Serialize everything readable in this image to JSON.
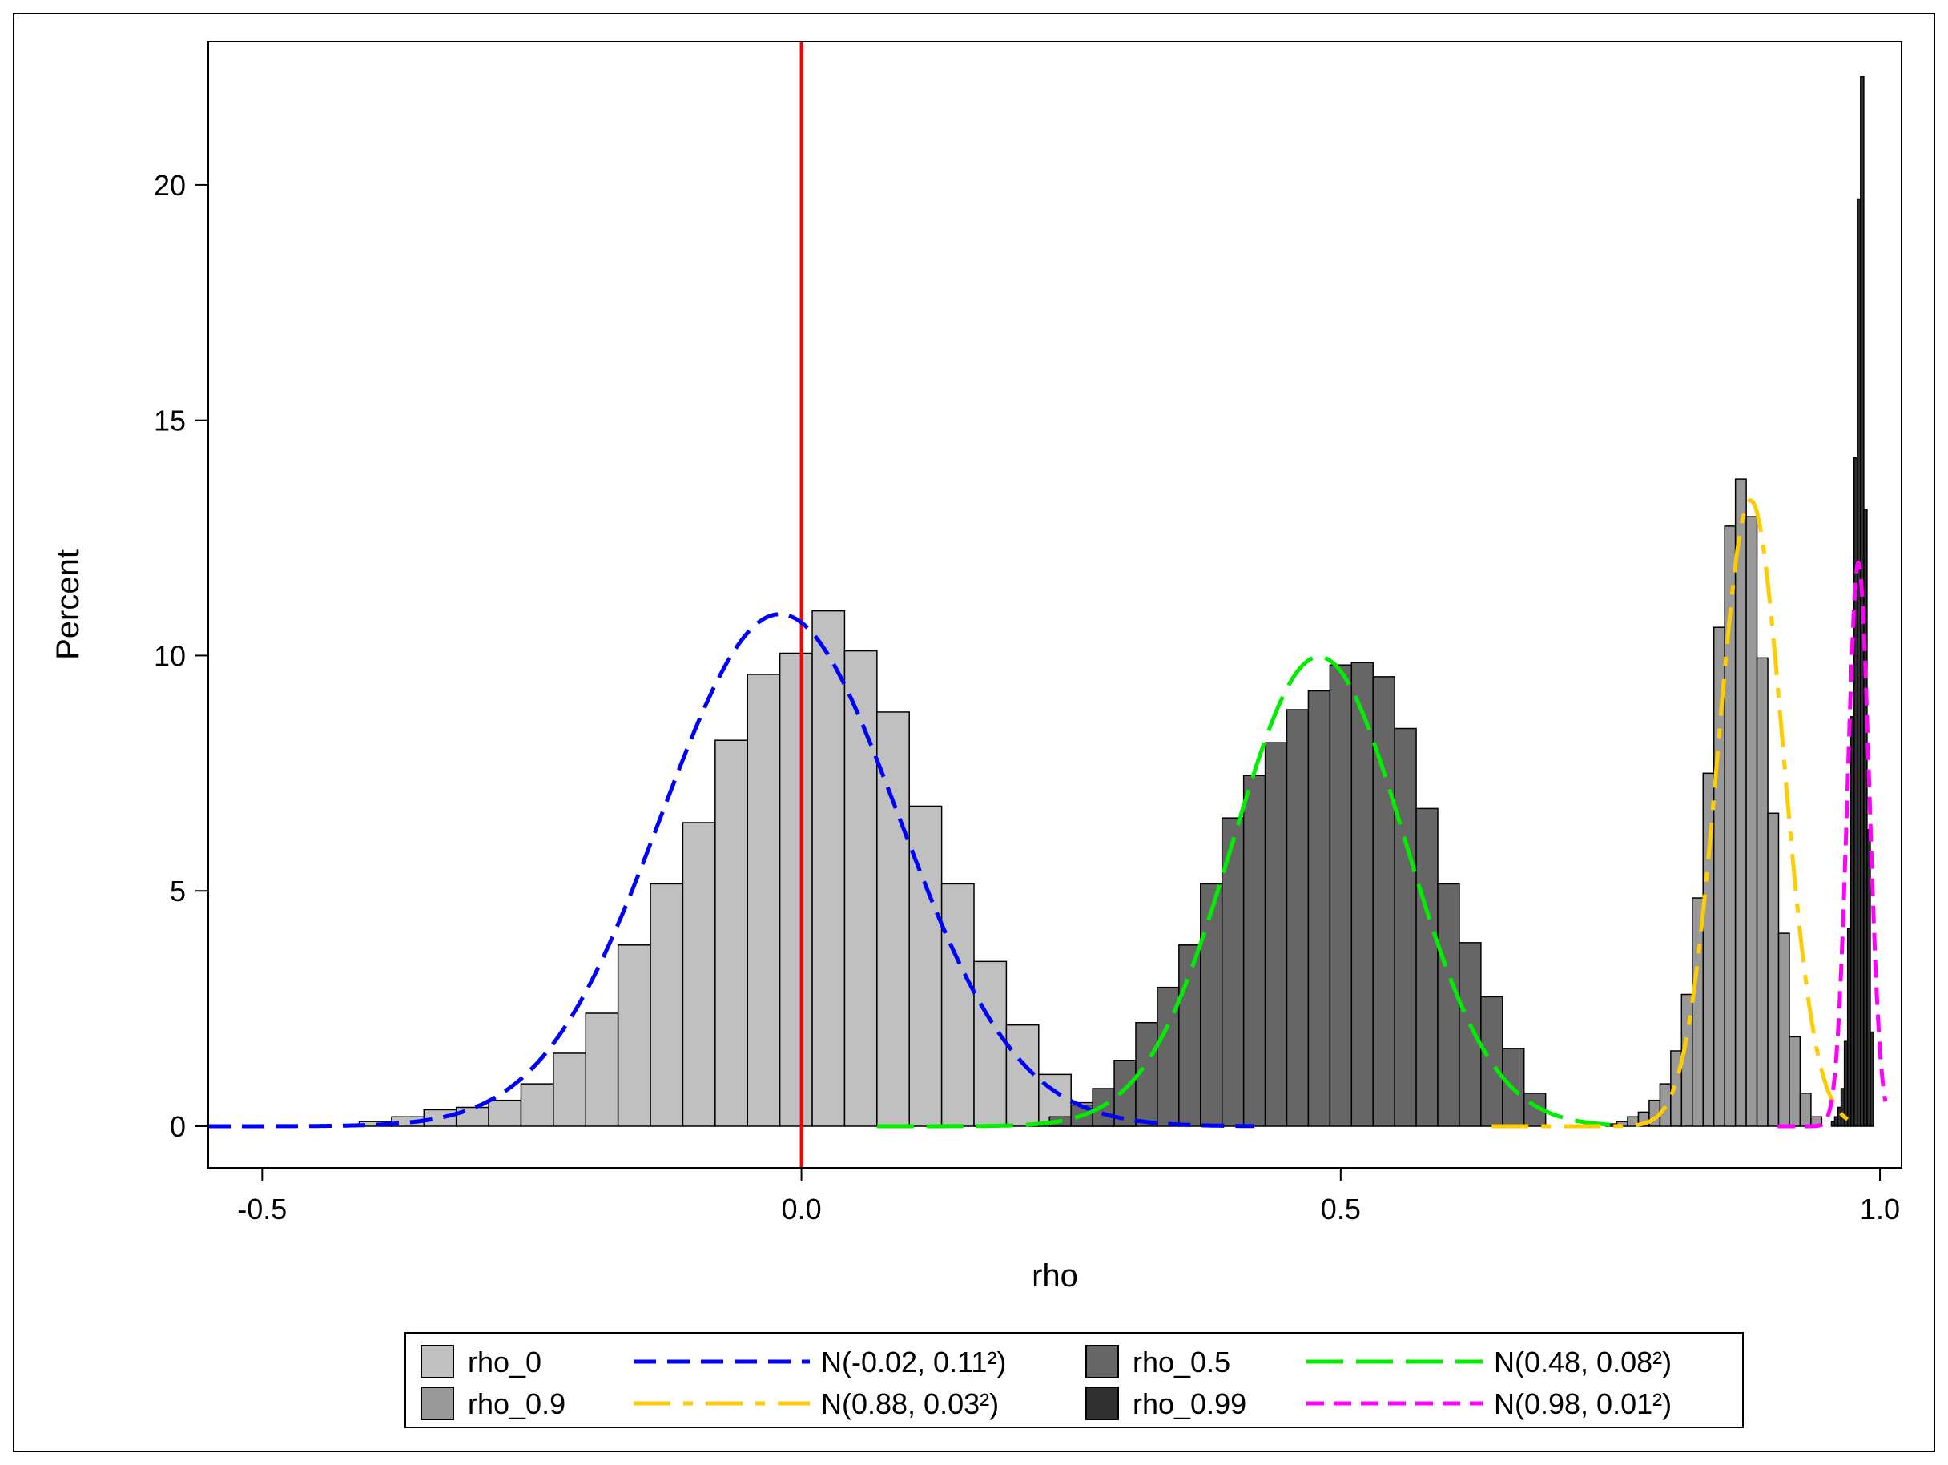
{
  "chart_data": {
    "type": "bar",
    "xlabel": "rho",
    "ylabel": "Percent",
    "xlim": [
      -0.55,
      1.02
    ],
    "ylim": [
      0,
      22.5
    ],
    "x_ticks": [
      -0.5,
      0.0,
      0.5,
      1.0
    ],
    "x_tick_labels": [
      "-0.5",
      "0.0",
      "0.5",
      "1.0"
    ],
    "y_ticks": [
      0,
      5,
      10,
      15,
      20
    ],
    "y_tick_labels": [
      "0",
      "5",
      "10",
      "15",
      "20"
    ],
    "grid": false,
    "reference_line": {
      "x": 0.0,
      "color": "#ff0000"
    },
    "legend_position": "bottom",
    "series": [
      {
        "name": "rho_0",
        "kind": "histogram",
        "color": "#c0c0c0",
        "bin_start": -0.41,
        "bin_width": 0.03,
        "values": [
          0.1,
          0.2,
          0.35,
          0.4,
          0.55,
          0.9,
          1.55,
          2.4,
          3.85,
          5.15,
          6.45,
          8.2,
          9.6,
          10.05,
          10.95,
          10.1,
          8.8,
          6.8,
          5.15,
          3.5,
          2.15,
          1.1,
          0.5,
          0.15
        ]
      },
      {
        "name": "rho_0.5",
        "kind": "histogram",
        "color": "#666666",
        "bin_start": 0.23,
        "bin_width": 0.02,
        "values": [
          0.2,
          0.45,
          0.8,
          1.4,
          2.2,
          2.95,
          3.85,
          5.15,
          6.55,
          7.45,
          8.15,
          8.85,
          9.25,
          9.8,
          9.85,
          9.55,
          8.45,
          6.75,
          5.15,
          3.9,
          2.75,
          1.65,
          0.7
        ]
      },
      {
        "name": "rho_0.9",
        "kind": "histogram",
        "color": "#999999",
        "bin_start": 0.746,
        "bin_width": 0.01,
        "values": [
          0.05,
          0.1,
          0.2,
          0.3,
          0.55,
          0.9,
          1.6,
          2.8,
          4.85,
          7.5,
          10.6,
          12.75,
          13.75,
          12.95,
          9.95,
          6.65,
          4.1,
          1.9,
          0.7,
          0.2
        ]
      },
      {
        "name": "rho_0.99",
        "kind": "histogram",
        "color": "#303030",
        "bin_start": 0.955,
        "bin_width": 0.003,
        "values": [
          0.1,
          0.2,
          0.4,
          0.8,
          1.8,
          4.2,
          8.7,
          14.2,
          19.7,
          22.3,
          13.1,
          6.3,
          2.0
        ]
      },
      {
        "name": "N(-0.02, 0.11²)",
        "kind": "normal",
        "mean": -0.02,
        "sd": 0.11,
        "color": "#0000ff",
        "x_range": [
          -0.55,
          0.42
        ]
      },
      {
        "name": "N(0.48, 0.08²)",
        "kind": "normal",
        "mean": 0.48,
        "sd": 0.08,
        "color": "#00ee00",
        "x_range": [
          0.07,
          0.75
        ]
      },
      {
        "name": "N(0.88, 0.03²)",
        "kind": "normal",
        "mean": 0.88,
        "sd": 0.03,
        "color": "#ffcc00",
        "x_range": [
          0.64,
          0.97
        ]
      },
      {
        "name": "N(0.98, 0.01²)",
        "kind": "normal",
        "mean": 0.98,
        "sd": 0.01,
        "color": "#ff00ff",
        "x_range": [
          0.905,
          1.005
        ]
      }
    ],
    "legend": [
      {
        "label": "rho_0",
        "kind": "box",
        "color": "#c0c0c0"
      },
      {
        "label": "N(-0.02, 0.11²)",
        "kind": "line",
        "color": "#0000ff",
        "dash": "blue"
      },
      {
        "label": "rho_0.5",
        "kind": "box",
        "color": "#666666"
      },
      {
        "label": "N(0.48, 0.08²)",
        "kind": "line",
        "color": "#00ee00",
        "dash": "green"
      },
      {
        "label": "rho_0.9",
        "kind": "box",
        "color": "#999999"
      },
      {
        "label": "N(0.88, 0.03²)",
        "kind": "line",
        "color": "#ffcc00",
        "dash": "yellow"
      },
      {
        "label": "rho_0.99",
        "kind": "box",
        "color": "#303030"
      },
      {
        "label": "N(0.98, 0.01²)",
        "kind": "line",
        "color": "#ff00ff",
        "dash": "magenta"
      }
    ]
  }
}
